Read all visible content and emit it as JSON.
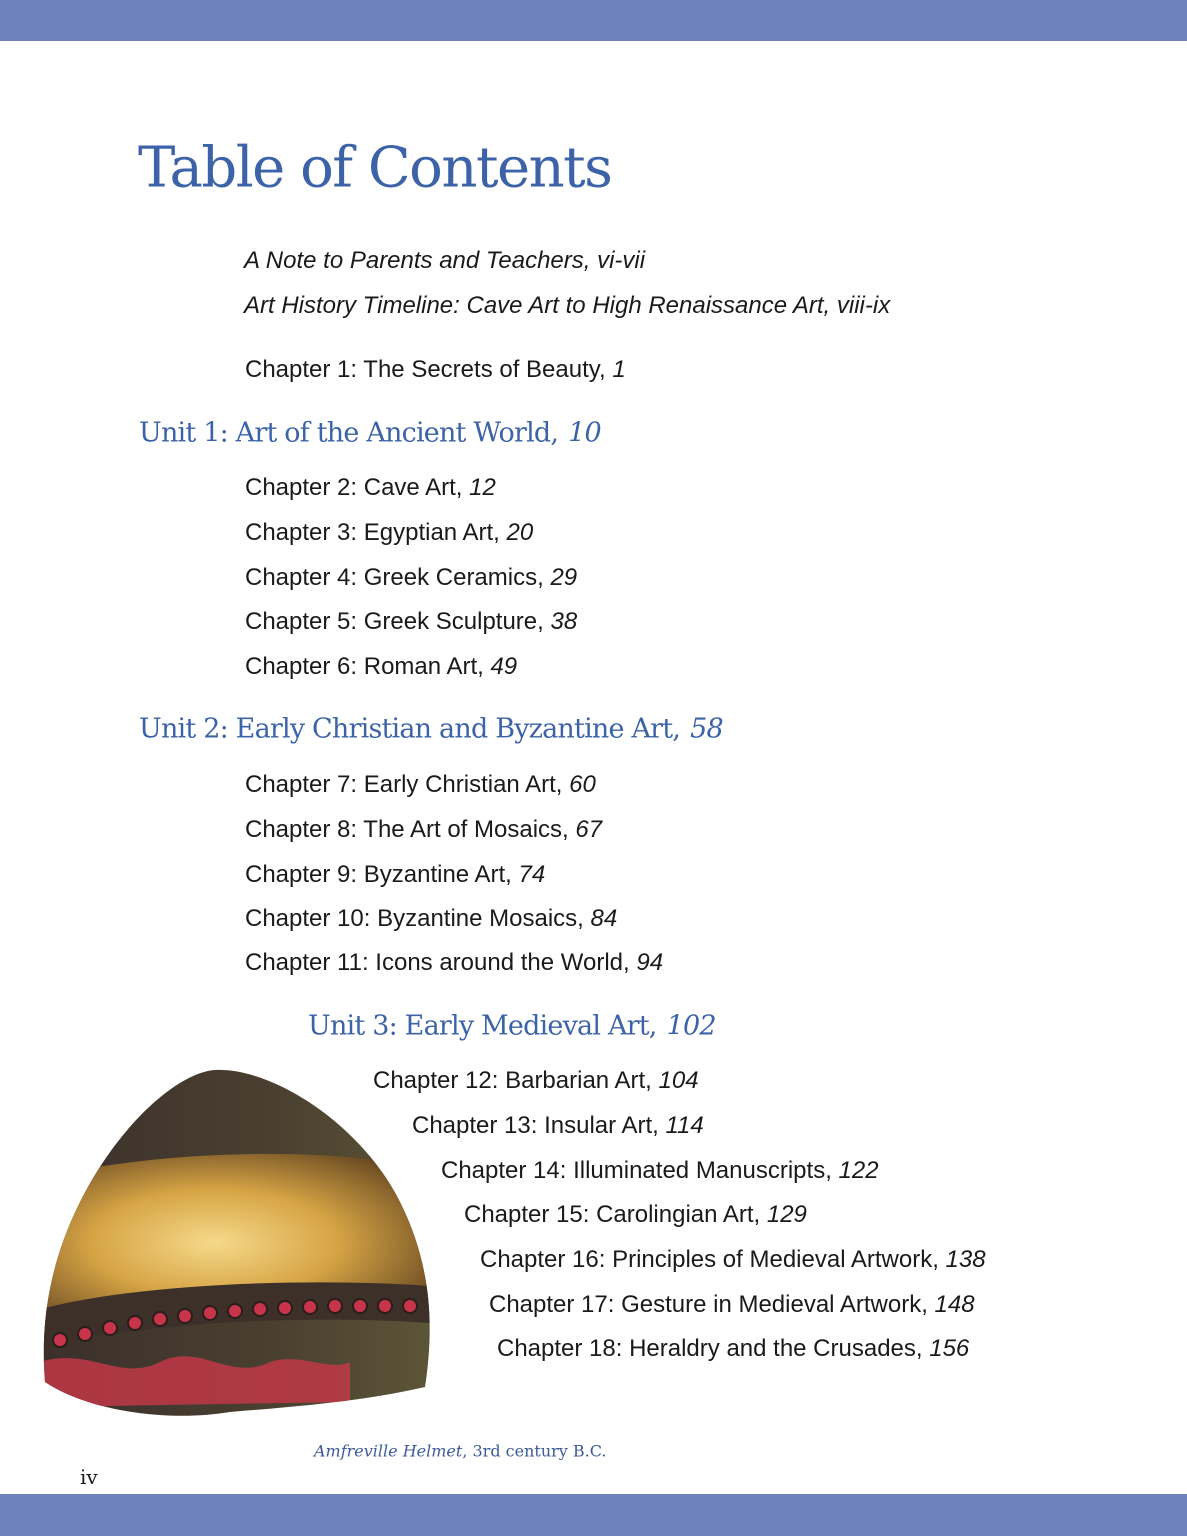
{
  "page": {
    "title": "Table of Contents",
    "colors": {
      "band": "#6e82be",
      "heading": "#3c63a8"
    },
    "front_matter": [
      "A Note to Parents and Teachers, vi-vii",
      "Art History Timeline: Cave Art to High Renaissance Art, viii-ix"
    ],
    "intro_chapter": {
      "label": "Chapter 1: The Secrets of Beauty, ",
      "page": "1"
    },
    "units": [
      {
        "label": "Unit 1:  Art of the Ancient World,",
        "page": "10",
        "chapters": [
          {
            "label": "Chapter 2: Cave Art, ",
            "page": "12"
          },
          {
            "label": "Chapter 3: Egyptian Art, ",
            "page": "20"
          },
          {
            "label": "Chapter 4: Greek Ceramics, ",
            "page": "29"
          },
          {
            "label": "Chapter 5: Greek Sculpture, ",
            "page": "38"
          },
          {
            "label": "Chapter 6: Roman Art, ",
            "page": "49"
          }
        ]
      },
      {
        "label": "Unit 2: Early Christian and Byzantine Art,",
        "page": "58",
        "chapters": [
          {
            "label": "Chapter 7: Early Christian Art, ",
            "page": "60"
          },
          {
            "label": "Chapter 8: The Art of Mosaics, ",
            "page": "67"
          },
          {
            "label": "Chapter 9: Byzantine Art, ",
            "page": "74"
          },
          {
            "label": "Chapter 10: Byzantine Mosaics, ",
            "page": "84"
          },
          {
            "label": "Chapter 11: Icons around the World, ",
            "page": "94"
          }
        ]
      },
      {
        "label": "Unit 3:  Early Medieval Art,",
        "page": "102",
        "chapters": [
          {
            "label": "Chapter 12: Barbarian Art, ",
            "page": "104"
          },
          {
            "label": "Chapter 13: Insular Art, ",
            "page": "114"
          },
          {
            "label": "Chapter 14: Illuminated Manuscripts, ",
            "page": "122"
          },
          {
            "label": "Chapter 15: Carolingian Art, ",
            "page": "129"
          },
          {
            "label": "Chapter 16: Principles of Medieval Artwork, ",
            "page": "138"
          },
          {
            "label": "Chapter 17: Gesture in Medieval Artwork, ",
            "page": "148"
          },
          {
            "label": "Chapter 18: Heraldry and the Crusades, ",
            "page": "156"
          }
        ]
      }
    ],
    "image": {
      "subject": "Amfreville Helmet photo",
      "caption_title": "Amfreville Helmet",
      "caption_rest": ", 3rd century B.C."
    },
    "page_number": "iv"
  }
}
